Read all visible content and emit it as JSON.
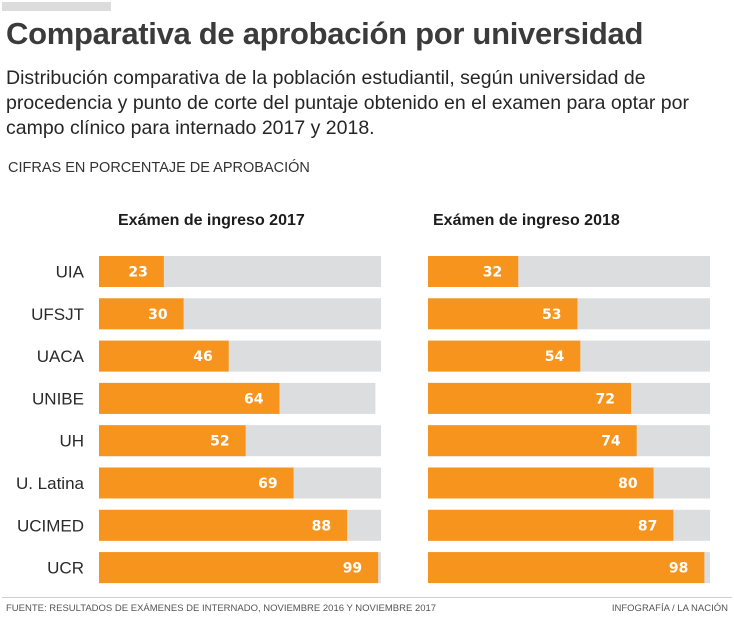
{
  "header": {
    "title": "Comparativa de aprobación por universidad",
    "subtitle": "Distribución comparativa de la población estudiantil, según universidad de procedencia y punto de corte del puntaje obtenido en el examen para optar por campo clínico para internado 2017 y 2018.",
    "units_note": "CIFRAS EN PORCENTAJE DE APROBACIÓN"
  },
  "footer": {
    "source": "FUENTE: RESULTADOS DE EXÁMENES DE INTERNADO, NOVIEMBRE 2016 Y NOVIEMBRE 2017",
    "credit": "INFOGRAFÍA / LA NACIÓN"
  },
  "colors": {
    "bar": "#f7941d",
    "track": "#dcdddf",
    "value_text": "#ffffff"
  },
  "chart_data": [
    {
      "type": "bar",
      "orientation": "horizontal",
      "title": "Exámen de ingreso 2017",
      "xlabel": "",
      "ylabel": "",
      "xlim": [
        0,
        100
      ],
      "grid": false,
      "categories": [
        "UIA",
        "UFSJT",
        "UACA",
        "UNIBE",
        "UH",
        "U. Latina",
        "UCIMED",
        "UCR"
      ],
      "values": [
        23,
        30,
        46,
        64,
        52,
        69,
        88,
        99
      ],
      "track_max": [
        100,
        100,
        100,
        98,
        100,
        100,
        100,
        100
      ]
    },
    {
      "type": "bar",
      "orientation": "horizontal",
      "title": "Exámen de ingreso 2018",
      "xlabel": "",
      "ylabel": "",
      "xlim": [
        0,
        100
      ],
      "grid": false,
      "categories": [
        "UIA",
        "UFSJT",
        "UACA",
        "UNIBE",
        "UH",
        "U. Latina",
        "UCIMED",
        "UCR"
      ],
      "values": [
        32,
        53,
        54,
        72,
        74,
        80,
        87,
        98
      ],
      "track_max": [
        100,
        100,
        100,
        100,
        100,
        100,
        100,
        100
      ]
    }
  ]
}
